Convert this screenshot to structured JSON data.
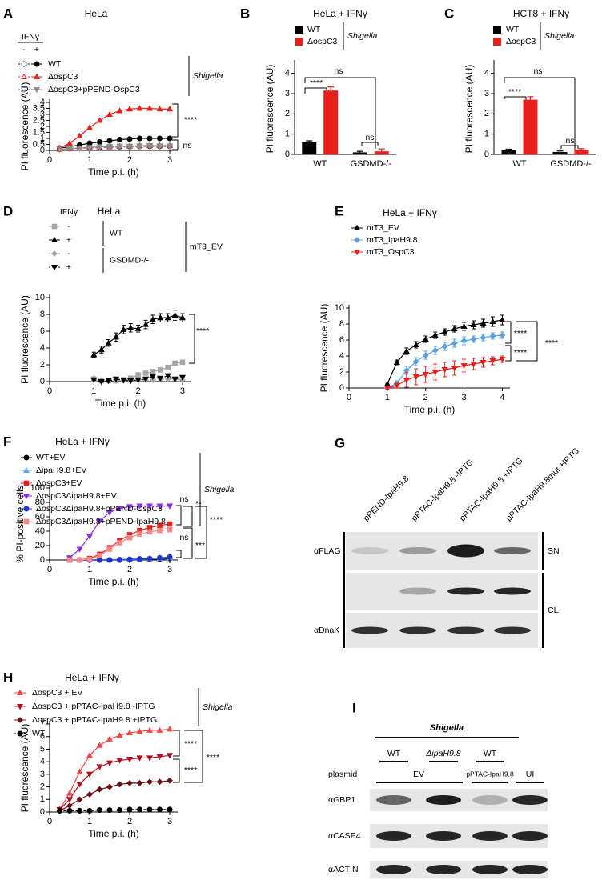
{
  "chart_data": [
    {
      "type": "line",
      "panel": "A",
      "title": "HeLa",
      "legend_header": "IFNγ",
      "legend_columns": [
        "-",
        "+"
      ],
      "group_label": "Shigella",
      "xlabel": "Time p.i. (h)",
      "ylabel": "PI fluorescence (AU)",
      "x": [
        0.25,
        0.5,
        0.75,
        1,
        1.25,
        1.5,
        1.75,
        2,
        2.25,
        2.5,
        2.75,
        3
      ],
      "xlim": [
        0,
        3.2
      ],
      "xticks": [
        0,
        1,
        2,
        3
      ],
      "ylim": [
        0,
        4
      ],
      "yticks": [
        0,
        0.5,
        1,
        1.5,
        2,
        2.5,
        3,
        3.5,
        4
      ],
      "series": [
        {
          "name": "WT",
          "ifn": "-",
          "color": "#000000",
          "marker": "circle",
          "filled": false,
          "dashed": true,
          "values": [
            0.1,
            0.15,
            0.2,
            0.22,
            0.25,
            0.3,
            0.3,
            0.32,
            0.35,
            0.35,
            0.35,
            0.35
          ]
        },
        {
          "name": "WT",
          "ifn": "+",
          "color": "#000000",
          "marker": "circle",
          "filled": true,
          "dashed": false,
          "values": [
            0.2,
            0.3,
            0.45,
            0.6,
            0.7,
            0.8,
            0.9,
            0.95,
            1.0,
            1.0,
            1.0,
            1.0
          ]
        },
        {
          "name": "ΔospC3",
          "ifn": "-",
          "color": "#e8201c",
          "marker": "triangle",
          "filled": false,
          "dashed": true,
          "values": [
            0.1,
            0.15,
            0.2,
            0.25,
            0.3,
            0.3,
            0.35,
            0.35,
            0.4,
            0.4,
            0.4,
            0.4
          ]
        },
        {
          "name": "ΔospC3",
          "ifn": "+",
          "color": "#e8201c",
          "marker": "triangle",
          "filled": true,
          "dashed": false,
          "values": [
            0.2,
            0.6,
            1.2,
            1.9,
            2.5,
            3.0,
            3.3,
            3.45,
            3.5,
            3.5,
            3.45,
            3.45
          ]
        },
        {
          "name": "ΔospC3+pPEND-OspC3",
          "ifn": "-",
          "color": "#8c8c8c",
          "marker": "triangle-down",
          "filled": false,
          "dashed": true,
          "values": [
            0.1,
            0.12,
            0.15,
            0.2,
            0.22,
            0.25,
            0.28,
            0.3,
            0.3,
            0.32,
            0.32,
            0.3
          ]
        },
        {
          "name": "ΔospC3+pPEND-OspC3",
          "ifn": "+",
          "color": "#8c8c8c",
          "marker": "triangle-down",
          "filled": true,
          "dashed": false,
          "values": [
            0.1,
            0.15,
            0.2,
            0.25,
            0.3,
            0.32,
            0.35,
            0.35,
            0.38,
            0.4,
            0.38,
            0.38
          ]
        }
      ],
      "annotations": [
        "****",
        "ns"
      ]
    },
    {
      "type": "bar",
      "panel": "B",
      "title": "HeLa + IFNγ",
      "group_label": "Shigella",
      "ylabel": "PI fluorescence (AU)",
      "categories": [
        "WT",
        "GSDMD-/-"
      ],
      "ylim": [
        0,
        4.5
      ],
      "yticks": [
        0,
        1,
        2,
        3,
        4
      ],
      "series": [
        {
          "name": "WT",
          "color": "#000000",
          "values": [
            0.6,
            0.1
          ],
          "errors": [
            0.07,
            0.05
          ]
        },
        {
          "name": "ΔospC3",
          "color": "#e8201c",
          "values": [
            3.15,
            0.15
          ],
          "errors": [
            0.18,
            0.12
          ]
        }
      ],
      "annotations": [
        "****",
        "ns",
        "ns"
      ]
    },
    {
      "type": "bar",
      "panel": "C",
      "title": "HCT8 + IFNγ",
      "group_label": "Shigella",
      "ylabel": "PI fluorescence (AU)",
      "categories": [
        "WT",
        "GSDMD-/-"
      ],
      "ylim": [
        0,
        4.5
      ],
      "yticks": [
        0,
        1,
        2,
        3,
        4
      ],
      "series": [
        {
          "name": "WT",
          "color": "#000000",
          "values": [
            0.2,
            0.12
          ],
          "errors": [
            0.06,
            0.05
          ]
        },
        {
          "name": "ΔospC3",
          "color": "#e8201c",
          "values": [
            2.7,
            0.22
          ],
          "errors": [
            0.15,
            0.06
          ]
        }
      ],
      "annotations": [
        "****",
        "ns",
        "ns"
      ]
    },
    {
      "type": "line",
      "panel": "D",
      "title": "HeLa",
      "legend_header": "IFNγ",
      "group_label": "mT3_EV",
      "xlabel": "Time p.i. (h)",
      "ylabel": "PI fluorescence (AU)",
      "x": [
        1,
        1.17,
        1.33,
        1.5,
        1.67,
        1.83,
        2,
        2.17,
        2.33,
        2.5,
        2.67,
        2.83,
        3
      ],
      "xlim": [
        0,
        3.2
      ],
      "xticks": [
        0,
        1,
        2,
        3
      ],
      "ylim": [
        0,
        10
      ],
      "yticks": [
        0,
        2,
        4,
        6,
        8,
        10
      ],
      "series": [
        {
          "name": "WT",
          "ifn": "-",
          "color": "#a6a6a6",
          "marker": "square",
          "filled": true,
          "dashed": false,
          "values": [
            0.3,
            0.1,
            0.1,
            0.1,
            0.2,
            0.4,
            0.8,
            1.0,
            1.2,
            1.4,
            1.7,
            2.2,
            2.3
          ]
        },
        {
          "name": "WT",
          "ifn": "+",
          "color": "#000000",
          "marker": "triangle",
          "filled": true,
          "dashed": false,
          "values": [
            3.2,
            3.8,
            4.6,
            5.3,
            6.2,
            6.4,
            6.3,
            6.8,
            7.4,
            7.6,
            7.6,
            7.9,
            7.6
          ],
          "errors": [
            0.3,
            0.4,
            0.4,
            0.5,
            0.5,
            0.5,
            0.4,
            0.5,
            0.5,
            0.5,
            0.5,
            0.6,
            0.5
          ]
        },
        {
          "name": "GSDMD-/-",
          "ifn": "-",
          "color": "#a6a6a6",
          "marker": "diamond",
          "filled": true,
          "dashed": true,
          "values": [
            0.4,
            0.2,
            0.1,
            0.1,
            0.1,
            0.1,
            0.2,
            0.2,
            0.2,
            0.3,
            0.3,
            0.3,
            0.2
          ]
        },
        {
          "name": "GSDMD-/-",
          "ifn": "+",
          "color": "#000000",
          "marker": "triangle-down",
          "filled": true,
          "dashed": true,
          "values": [
            0.2,
            0,
            0.1,
            0.3,
            0.2,
            0.1,
            0.2,
            0.3,
            0.6,
            0.4,
            0.7,
            0.3,
            0.5
          ]
        }
      ],
      "annotations": [
        "****"
      ]
    },
    {
      "type": "line",
      "panel": "E",
      "title": "HeLa + IFNγ",
      "xlabel": "Time p.i. (h)",
      "ylabel": "PI fluorescence (AU)",
      "x": [
        1,
        1.25,
        1.5,
        1.75,
        2,
        2.25,
        2.5,
        2.75,
        3,
        3.25,
        3.5,
        3.75,
        4
      ],
      "xlim": [
        0,
        4.2
      ],
      "xticks": [
        0,
        1,
        2,
        3,
        4
      ],
      "ylim": [
        0,
        10
      ],
      "yticks": [
        0,
        2,
        4,
        6,
        8,
        10
      ],
      "series": [
        {
          "name": "mT3_EV",
          "color": "#000000",
          "marker": "triangle",
          "filled": true,
          "dashed": false,
          "values": [
            0.5,
            3.2,
            4.6,
            5.4,
            6.1,
            6.6,
            7.0,
            7.4,
            7.7,
            7.9,
            8.1,
            8.3,
            8.5
          ],
          "errors": [
            0.1,
            0.3,
            0.4,
            0.4,
            0.4,
            0.4,
            0.4,
            0.4,
            0.5,
            0.5,
            0.5,
            0.6,
            0.6
          ]
        },
        {
          "name": "mT3_IpaH9.8",
          "color": "#5aa0e0",
          "marker": "diamond",
          "filled": true,
          "dashed": false,
          "values": [
            0,
            0.6,
            2.2,
            3.3,
            4.1,
            4.7,
            5.2,
            5.6,
            5.9,
            6.1,
            6.3,
            6.5,
            6.6
          ],
          "errors": [
            0.1,
            0.3,
            0.5,
            0.5,
            0.5,
            0.5,
            0.5,
            0.5,
            0.5,
            0.4,
            0.4,
            0.4,
            0.4
          ]
        },
        {
          "name": "mT3_OspC3",
          "color": "#e8201c",
          "marker": "triangle-down",
          "filled": true,
          "dashed": false,
          "values": [
            0,
            0.3,
            1.0,
            1.4,
            1.7,
            2.0,
            2.3,
            2.5,
            2.8,
            3.0,
            3.2,
            3.4,
            3.6
          ],
          "errors": [
            0.1,
            0.3,
            0.9,
            1.0,
            1.0,
            1.0,
            0.9,
            0.9,
            0.8,
            0.7,
            0.6,
            0.5,
            0.4
          ]
        }
      ],
      "annotations": [
        "****",
        "****",
        "****"
      ]
    },
    {
      "type": "line",
      "panel": "F",
      "title": "HeLa + IFNγ",
      "group_label": "Shigella",
      "xlabel": "Time p.i. (h)",
      "ylabel": "% PI-positive cells",
      "x": [
        0.5,
        0.75,
        1,
        1.25,
        1.5,
        1.75,
        2,
        2.25,
        2.5,
        2.75,
        3
      ],
      "xlim": [
        0,
        3.2
      ],
      "xticks": [
        0,
        1,
        2,
        3
      ],
      "ylim": [
        0,
        100
      ],
      "yticks": [
        0,
        20,
        40,
        60,
        80,
        100
      ],
      "series": [
        {
          "name": "WT+EV",
          "color": "#000000",
          "marker": "circle",
          "filled": true,
          "dashed": false,
          "values": [
            0,
            0,
            0,
            0,
            0,
            0,
            0.5,
            0.5,
            1,
            1,
            2
          ]
        },
        {
          "name": "ΔipaH9.8+EV",
          "color": "#6aa8e0",
          "marker": "triangle",
          "filled": true,
          "dashed": false,
          "values": [
            0,
            0,
            0,
            0,
            0,
            0.5,
            0.5,
            1,
            1.5,
            2,
            3
          ]
        },
        {
          "name": "ΔospC3+EV",
          "color": "#e8201c",
          "marker": "square",
          "filled": true,
          "dashed": false,
          "values": [
            0,
            0,
            2,
            8,
            17,
            27,
            35,
            41,
            45,
            48,
            50
          ]
        },
        {
          "name": "ΔospC3ΔipaH9.8+EV",
          "color": "#8b2be2",
          "marker": "triangle-down",
          "filled": true,
          "dashed": false,
          "values": [
            3,
            15,
            33,
            54,
            66,
            72,
            74,
            75,
            75,
            75,
            75
          ]
        },
        {
          "name": "ΔospC3ΔipaH9.8+pPEND-OspC3",
          "color": "#1f35d0",
          "marker": "circle",
          "filled": true,
          "dashed": false,
          "values": [
            0,
            0,
            0,
            0,
            0,
            0.5,
            1,
            1.5,
            2,
            3,
            4
          ]
        },
        {
          "name": "ΔospC3ΔipaH9.8+pPEND-IpaH9.8",
          "color": "#f08a8a",
          "marker": "square",
          "filled": true,
          "dashed": false,
          "values": [
            0,
            0,
            1,
            6,
            15,
            24,
            31,
            36,
            39,
            41,
            42
          ]
        }
      ],
      "annotations": [
        "ns",
        "**",
        "ns",
        "***",
        "****"
      ]
    },
    {
      "type": "line",
      "panel": "H",
      "title": "HeLa + IFNγ",
      "group_label": "Shigella",
      "xlabel": "Time p.i. (h)",
      "ylabel": "PI fluorescence (AU)",
      "x": [
        0.25,
        0.5,
        0.75,
        1,
        1.25,
        1.5,
        1.75,
        2,
        2.25,
        2.5,
        2.75,
        3
      ],
      "xlim": [
        0,
        3.2
      ],
      "xticks": [
        0,
        1,
        2,
        3
      ],
      "ylim": [
        0,
        7
      ],
      "yticks": [
        0,
        1,
        2,
        3,
        4,
        5,
        6,
        7
      ],
      "series": [
        {
          "name": "ΔospC3 + EV",
          "color": "#f04848",
          "marker": "triangle",
          "filled": true,
          "dashed": false,
          "values": [
            0.2,
            1.5,
            3.2,
            4.5,
            5.3,
            5.8,
            6.1,
            6.3,
            6.4,
            6.5,
            6.5,
            6.6
          ]
        },
        {
          "name": "ΔospC3 + pPTAC-IpaH9.8 -IPTG",
          "color": "#b01020",
          "marker": "triangle-down",
          "filled": true,
          "dashed": false,
          "values": [
            0.2,
            1.0,
            2.2,
            3.0,
            3.6,
            3.9,
            4.1,
            4.2,
            4.3,
            4.3,
            4.4,
            4.5
          ]
        },
        {
          "name": "ΔospC3 + pPTAC-IpaH9.8 +IPTG",
          "color": "#6a0e12",
          "marker": "diamond",
          "filled": true,
          "dashed": false,
          "values": [
            0.1,
            0.5,
            1.0,
            1.4,
            1.8,
            2.0,
            2.2,
            2.3,
            2.3,
            2.4,
            2.4,
            2.5
          ]
        },
        {
          "name": "WT",
          "color": "#000000",
          "marker": "circle",
          "filled": true,
          "dashed": true,
          "values": [
            0.1,
            0.1,
            0.1,
            0.1,
            0.15,
            0.15,
            0.15,
            0.2,
            0.2,
            0.2,
            0.2,
            0.2
          ]
        }
      ],
      "annotations": [
        "****",
        "****",
        "****"
      ]
    }
  ],
  "blots": [
    {
      "panel": "G",
      "lanes": [
        "pPEND-IpaH9.8",
        "pPTAC-IpaH9.8 -IPTG",
        "pPTAC-IpaH9.8 +IPTG",
        "pPTAC-IpaH9.8mut +IPTG"
      ],
      "row_labels": [
        "αFLAG",
        "αDnaK"
      ],
      "fractions": [
        "SN",
        "CL"
      ]
    },
    {
      "panel": "I",
      "group": "Shigella",
      "strains": [
        "WT",
        "ΔipaH9.8",
        "WT"
      ],
      "plasmid_label": "plasmid",
      "plasmids": [
        "EV",
        "pPTAC-IpaH9.8",
        "UI"
      ],
      "row_labels": [
        "αGBP1",
        "αCASP4",
        "αACTIN"
      ]
    }
  ]
}
